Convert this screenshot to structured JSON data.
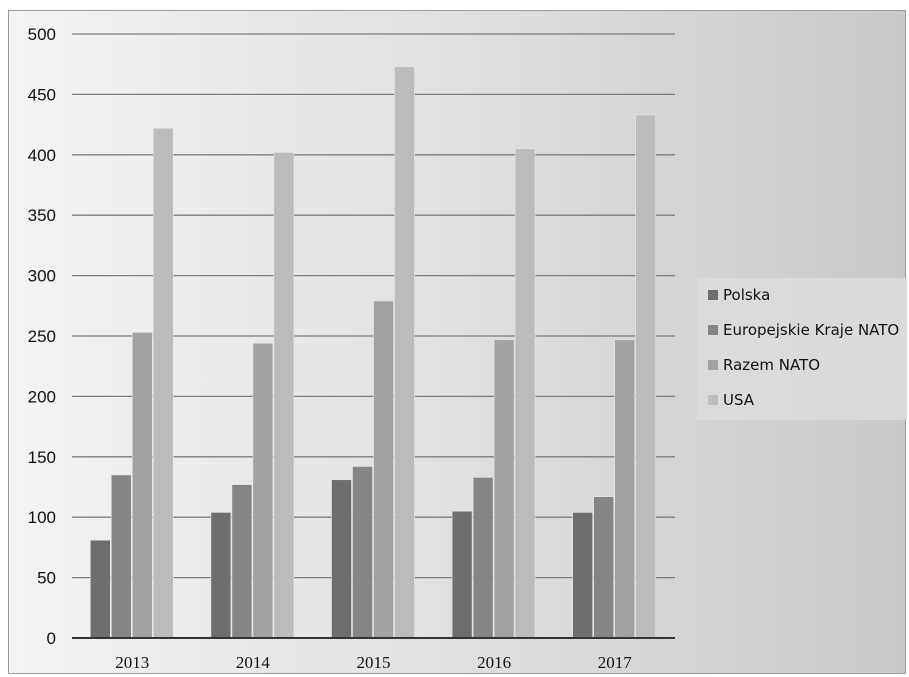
{
  "chart_data": {
    "type": "bar",
    "title": "",
    "xlabel": "",
    "ylabel": "",
    "categories": [
      "2013",
      "2014",
      "2015",
      "2016",
      "2017"
    ],
    "series": [
      {
        "name": "Polska",
        "color": "#6e6e6e",
        "values": [
          81,
          104,
          131,
          105,
          104
        ]
      },
      {
        "name": "Europejskie Kraje NATO",
        "color": "#858585",
        "values": [
          135,
          127,
          142,
          133,
          117
        ]
      },
      {
        "name": "Razem NATO",
        "color": "#a2a2a2",
        "values": [
          253,
          244,
          279,
          247,
          247
        ]
      },
      {
        "name": "USA",
        "color": "#bcbcbc",
        "values": [
          422,
          402,
          473,
          405,
          433
        ]
      }
    ],
    "ylim": [
      0,
      500
    ],
    "yticks": [
      0,
      50,
      100,
      150,
      200,
      250,
      300,
      350,
      400,
      450,
      500
    ],
    "grid": true,
    "legend_position": "right"
  }
}
